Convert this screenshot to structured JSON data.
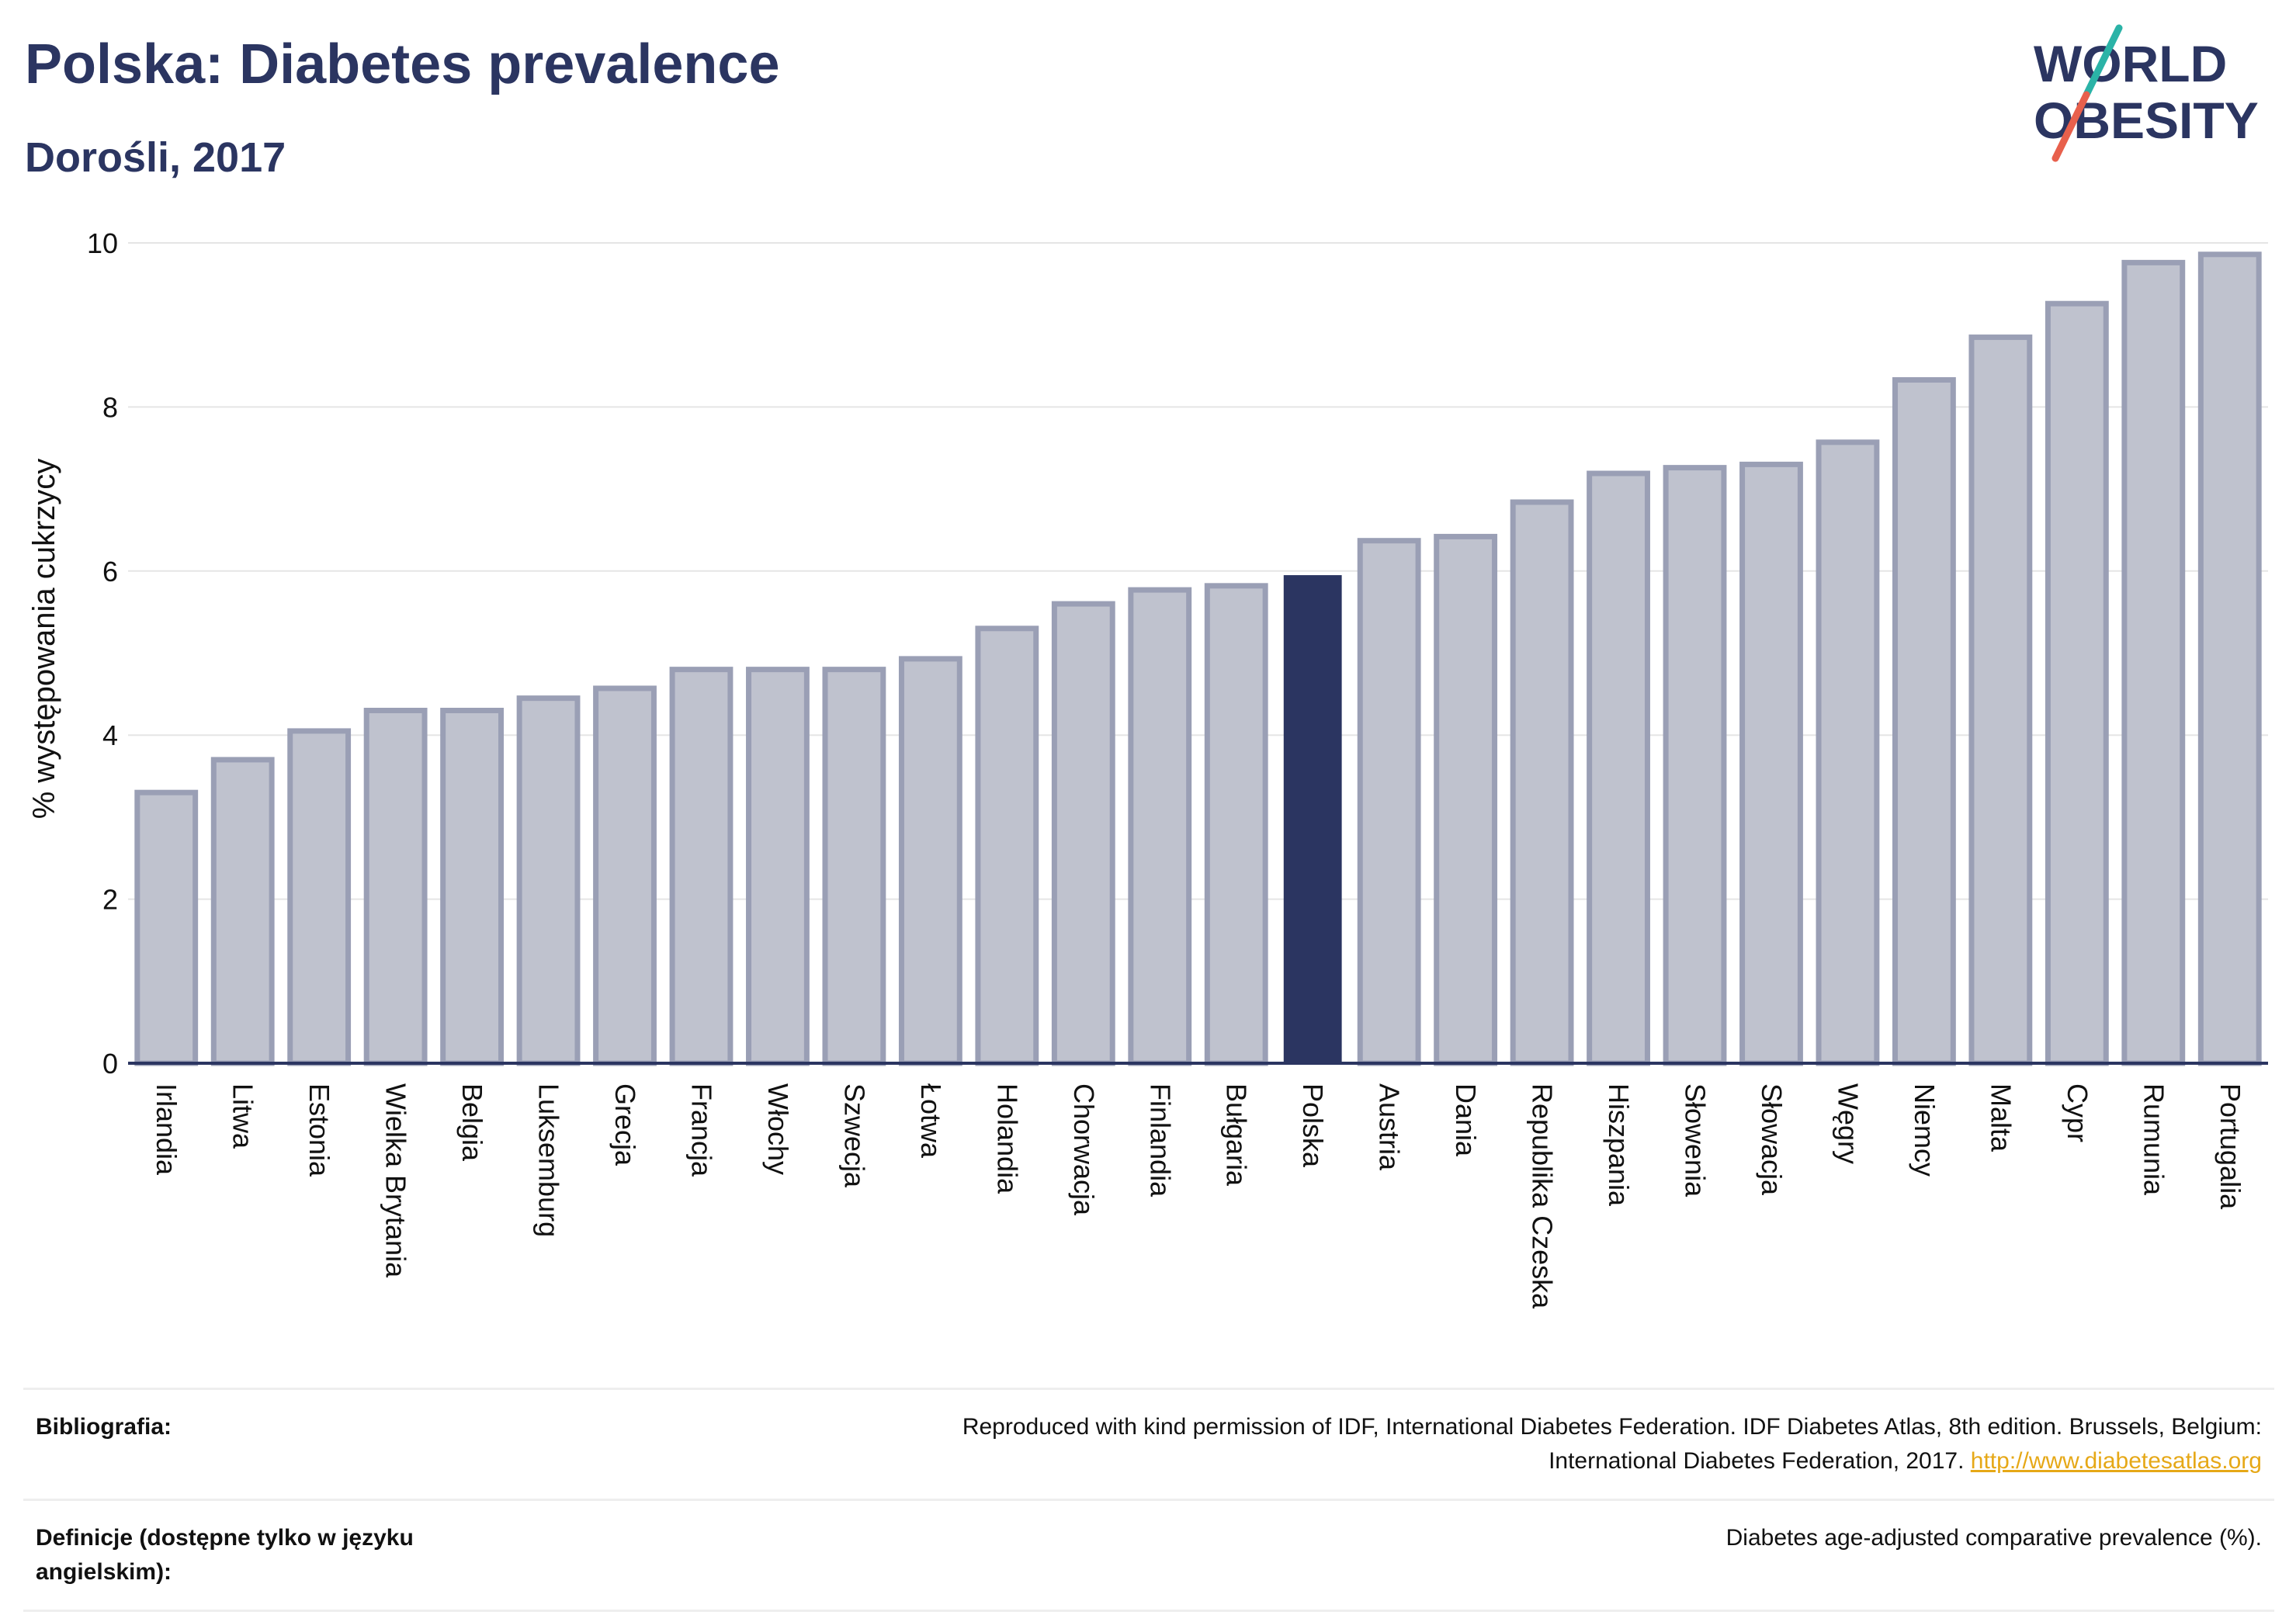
{
  "header": {
    "title": "Polska: Diabetes prevalence",
    "subtitle": "Dorośli, 2017"
  },
  "logo": {
    "line1": "WORLD",
    "line2": "OBESITY",
    "text_color": "#2b3561",
    "slash_colors": [
      "#2bb3a7",
      "#e8604c"
    ]
  },
  "colors": {
    "highlight_bar": "#2b3561",
    "bar_fill": "#bfc2ce",
    "bar_stroke": "#9a9fb5",
    "gridline": "#e5e5e5",
    "baseline": "#2b3561"
  },
  "chart_data": {
    "type": "bar",
    "ylabel": "% występowania cukrzycy",
    "xlabel": "",
    "ylim": [
      0,
      10
    ],
    "yticks": [
      0,
      2,
      4,
      6,
      8,
      10
    ],
    "grid": true,
    "highlight": "Polska",
    "categories": [
      "Irlandia",
      "Litwa",
      "Estonia",
      "Wielka Brytania",
      "Belgia",
      "Luksemburg",
      "Grecja",
      "Francja",
      "Włochy",
      "Szwecja",
      "Łotwa",
      "Holandia",
      "Chorwacja",
      "Finlandia",
      "Bułgaria",
      "Polska",
      "Austria",
      "Dania",
      "Republika Czeska",
      "Hiszpania",
      "Słowenia",
      "Słowacja",
      "Węgry",
      "Niemcy",
      "Malta",
      "Cypr",
      "Rumunia",
      "Portugalia"
    ],
    "values": [
      3.3,
      3.7,
      4.05,
      4.3,
      4.3,
      4.45,
      4.57,
      4.8,
      4.8,
      4.8,
      4.93,
      5.3,
      5.6,
      5.77,
      5.82,
      5.95,
      6.37,
      6.42,
      6.84,
      7.19,
      7.26,
      7.3,
      7.57,
      8.33,
      8.85,
      9.26,
      9.76,
      9.86
    ]
  },
  "references": {
    "bibliography_label": "Bibliografia:",
    "bibliography_text_line1": "Reproduced with kind permission of IDF, International Diabetes Federation. IDF Diabetes Atlas, 8th edition. Brussels, Belgium:",
    "bibliography_text_line2": "International Diabetes Federation, 2017.",
    "bibliography_link": "http://www.diabetesatlas.org",
    "definitions_label": "Definicje (dostępne tylko w języku angielskim):",
    "definitions_text": "Diabetes age-adjusted comparative prevalence (%)."
  }
}
